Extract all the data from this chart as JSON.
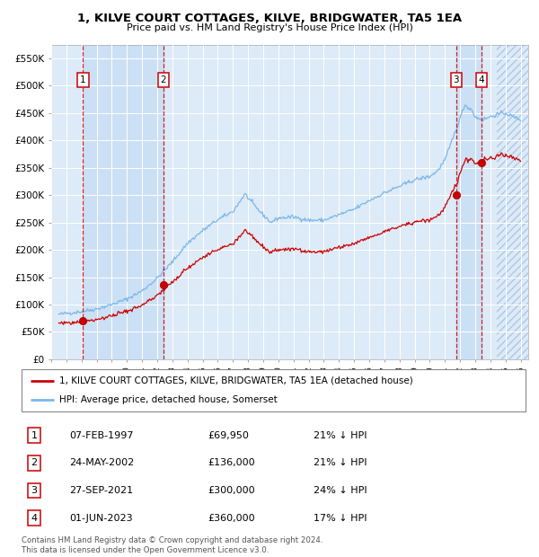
{
  "title": "1, KILVE COURT COTTAGES, KILVE, BRIDGWATER, TA5 1EA",
  "subtitle": "Price paid vs. HM Land Registry's House Price Index (HPI)",
  "ylim": [
    0,
    575000
  ],
  "yticks": [
    0,
    50000,
    100000,
    150000,
    200000,
    250000,
    300000,
    350000,
    400000,
    450000,
    500000,
    550000
  ],
  "ytick_labels": [
    "£0",
    "£50K",
    "£100K",
    "£150K",
    "£200K",
    "£250K",
    "£300K",
    "£350K",
    "£400K",
    "£450K",
    "£500K",
    "£550K"
  ],
  "sales": [
    {
      "num": 1,
      "date": "07-FEB-1997",
      "year": 1997.1,
      "price": 69950,
      "pct": "21%"
    },
    {
      "num": 2,
      "date": "24-MAY-2002",
      "year": 2002.4,
      "price": 136000,
      "pct": "21%"
    },
    {
      "num": 3,
      "date": "27-SEP-2021",
      "year": 2021.75,
      "price": 300000,
      "pct": "24%"
    },
    {
      "num": 4,
      "date": "01-JUN-2023",
      "year": 2023.42,
      "price": 360000,
      "pct": "17%"
    }
  ],
  "legend_line1": "1, KILVE COURT COTTAGES, KILVE, BRIDGWATER, TA5 1EA (detached house)",
  "legend_line2": "HPI: Average price, detached house, Somerset",
  "footer": "Contains HM Land Registry data © Crown copyright and database right 2024.\nThis data is licensed under the Open Government Licence v3.0.",
  "bg_color": "#ddeaf7",
  "line_color_red": "#cc0000",
  "line_color_blue": "#7ab8e8",
  "hpi_anchors_t": [
    1995.5,
    1996.0,
    1997.0,
    1998.0,
    1999.0,
    2000.0,
    2001.0,
    2002.0,
    2003.0,
    2004.0,
    2005.0,
    2006.0,
    2007.0,
    2007.8,
    2008.5,
    2009.5,
    2010.0,
    2011.0,
    2012.0,
    2013.0,
    2014.0,
    2015.0,
    2016.0,
    2017.0,
    2018.0,
    2019.0,
    2020.0,
    2020.5,
    2021.0,
    2021.5,
    2022.0,
    2022.3,
    2022.8,
    2023.0,
    2023.5,
    2024.0,
    2024.5,
    2025.0,
    2025.5,
    2026.0
  ],
  "hpi_anchors_v": [
    82000,
    84000,
    87000,
    92000,
    100000,
    110000,
    125000,
    148000,
    178000,
    212000,
    235000,
    255000,
    270000,
    302000,
    278000,
    250000,
    258000,
    260000,
    254000,
    254000,
    264000,
    274000,
    290000,
    304000,
    316000,
    328000,
    334000,
    344000,
    364000,
    402000,
    440000,
    465000,
    455000,
    442000,
    438000,
    443000,
    448000,
    450000,
    443000,
    438000
  ],
  "red_sale_times": [
    1997.1,
    2002.4,
    2021.75,
    2023.42
  ],
  "red_sale_prices": [
    69950,
    136000,
    300000,
    360000
  ],
  "hpi_at_sales": [
    88000,
    172000,
    395000,
    434000
  ]
}
